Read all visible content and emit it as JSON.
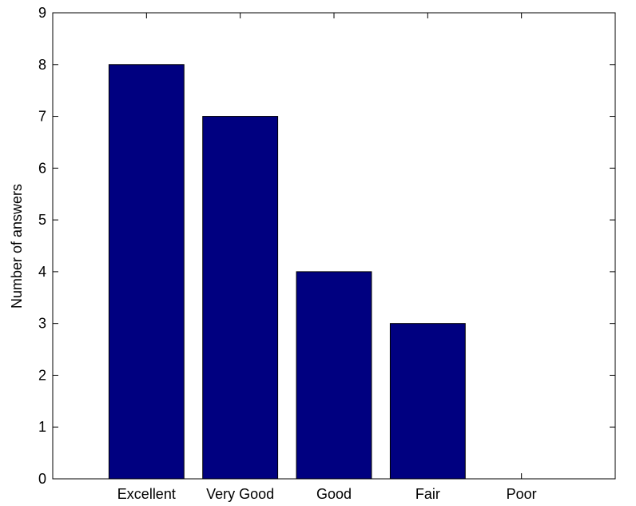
{
  "chart_data": {
    "type": "bar",
    "categories": [
      "Excellent",
      "Very Good",
      "Good",
      "Fair",
      "Poor"
    ],
    "values": [
      8,
      7,
      4,
      3,
      0
    ],
    "title": "",
    "xlabel": "",
    "ylabel": "Number of answers",
    "ylim": [
      0,
      9
    ],
    "yticks": [
      "0",
      "1",
      "2",
      "3",
      "4",
      "5",
      "6",
      "7",
      "8",
      "9"
    ],
    "grid": false,
    "legend": "none",
    "bar_color": "#000080",
    "bar_edge_color": "#000000"
  }
}
